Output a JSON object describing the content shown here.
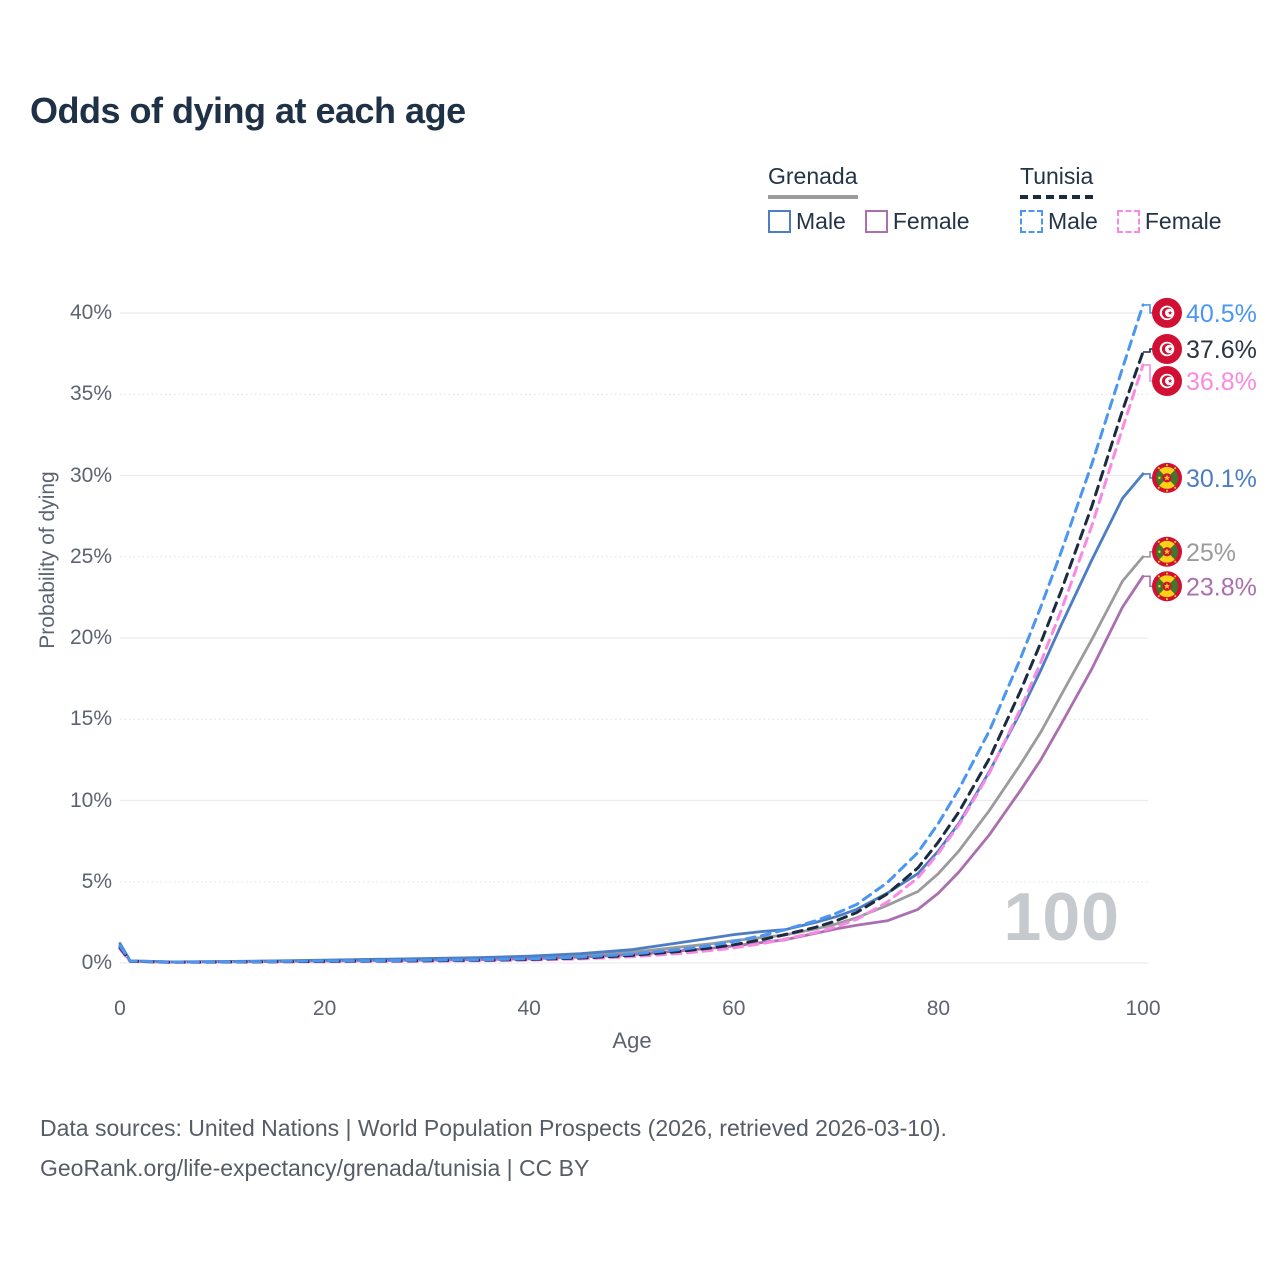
{
  "title": "Odds of dying at each age",
  "legend": {
    "groups": [
      {
        "name": "Grenada",
        "line_style": "solid",
        "color": "#9b9b9d",
        "items": [
          {
            "label": "Male",
            "color": "#4d7ec3"
          },
          {
            "label": "Female",
            "color": "#ab6fb0"
          }
        ]
      },
      {
        "name": "Tunisia",
        "line_style": "dashed",
        "color": "#1c2b3f",
        "items": [
          {
            "label": "Male",
            "color": "#4b96f0"
          },
          {
            "label": "Female",
            "color": "#f98ae3"
          }
        ]
      }
    ]
  },
  "chart_data": {
    "type": "line",
    "title": "Odds of dying at each age",
    "xlabel": "Age",
    "ylabel": "Probability of dying",
    "xlim": [
      0,
      100
    ],
    "ylim": [
      0,
      40
    ],
    "y_unit": "%",
    "grid": "horizontal",
    "legend_position": "top-right",
    "watermark": "100",
    "x_ticks": [
      0,
      20,
      40,
      60,
      80,
      100
    ],
    "y_tick_labels": [
      "0%",
      "5%",
      "10%",
      "15%",
      "20%",
      "25%",
      "30%",
      "35%",
      "40%"
    ],
    "x": [
      0,
      1,
      5,
      10,
      15,
      20,
      25,
      30,
      35,
      40,
      45,
      50,
      55,
      58,
      60,
      63,
      65,
      68,
      70,
      72,
      75,
      78,
      80,
      82,
      85,
      88,
      90,
      92,
      95,
      98,
      100
    ],
    "series": [
      {
        "id": "grenada_both",
        "name": "Grenada Both sexes",
        "country": "Grenada",
        "sex": "Both",
        "flag": "grenada-flag-icon",
        "color": "#9b9b9d",
        "dash": false,
        "end_label": "25%",
        "end_value": 25.0,
        "values": [
          1.1,
          0.12,
          0.06,
          0.08,
          0.11,
          0.15,
          0.19,
          0.23,
          0.27,
          0.34,
          0.46,
          0.66,
          1.0,
          1.2,
          1.38,
          1.58,
          1.72,
          2.1,
          2.4,
          2.78,
          3.55,
          4.4,
          5.5,
          6.9,
          9.4,
          12.2,
          14.2,
          16.5,
          19.9,
          23.5,
          25.0
        ]
      },
      {
        "id": "grenada_female",
        "name": "Grenada Female",
        "country": "Grenada",
        "sex": "Female",
        "flag": "grenada-flag-icon",
        "color": "#ab6fb0",
        "dash": false,
        "end_label": "23.8%",
        "end_value": 23.8,
        "values": [
          1.0,
          0.11,
          0.05,
          0.07,
          0.09,
          0.12,
          0.15,
          0.18,
          0.21,
          0.26,
          0.36,
          0.51,
          0.76,
          0.92,
          1.06,
          1.28,
          1.43,
          1.83,
          2.1,
          2.32,
          2.6,
          3.3,
          4.3,
          5.6,
          7.9,
          10.6,
          12.5,
          14.7,
          18.1,
          21.9,
          23.8
        ]
      },
      {
        "id": "grenada_male",
        "name": "Grenada Male",
        "country": "Grenada",
        "sex": "Male",
        "flag": "grenada-flag-icon",
        "color": "#4d7ec3",
        "dash": false,
        "end_label": "30.1%",
        "end_value": 30.1,
        "values": [
          1.2,
          0.13,
          0.07,
          0.09,
          0.13,
          0.18,
          0.23,
          0.28,
          0.33,
          0.42,
          0.57,
          0.82,
          1.28,
          1.55,
          1.75,
          1.95,
          2.05,
          2.5,
          2.85,
          3.3,
          4.3,
          5.5,
          6.9,
          8.6,
          11.8,
          15.4,
          18.0,
          20.8,
          24.8,
          28.6,
          30.1
        ]
      },
      {
        "id": "tunisia_female",
        "name": "Tunisia Female",
        "country": "Tunisia",
        "sex": "Female",
        "flag": "tunisia-flag-icon",
        "color": "#f98ae3",
        "dash": true,
        "end_label": "36.8%",
        "end_value": 36.8,
        "values": [
          0.85,
          0.1,
          0.04,
          0.05,
          0.06,
          0.08,
          0.1,
          0.11,
          0.14,
          0.18,
          0.25,
          0.38,
          0.6,
          0.78,
          0.93,
          1.22,
          1.47,
          1.88,
          2.23,
          2.68,
          3.75,
          5.25,
          6.75,
          8.5,
          11.7,
          15.6,
          18.5,
          21.7,
          26.9,
          32.9,
          36.8
        ]
      },
      {
        "id": "tunisia_both",
        "name": "Tunisia Both sexes",
        "country": "Tunisia",
        "sex": "Both",
        "flag": "tunisia-flag-icon",
        "color": "#1c2b3f",
        "dash": true,
        "end_label": "37.6%",
        "end_value": 37.6,
        "values": [
          0.95,
          0.11,
          0.05,
          0.06,
          0.08,
          0.1,
          0.12,
          0.14,
          0.17,
          0.22,
          0.31,
          0.47,
          0.73,
          0.94,
          1.12,
          1.47,
          1.75,
          2.2,
          2.6,
          3.1,
          4.25,
          5.85,
          7.45,
          9.3,
          12.6,
          16.7,
          19.7,
          22.9,
          28.1,
          34.0,
          37.6
        ]
      },
      {
        "id": "tunisia_male",
        "name": "Tunisia Male",
        "country": "Tunisia",
        "sex": "Male",
        "flag": "tunisia-flag-icon",
        "color": "#4b96f0",
        "dash": true,
        "end_label": "40.5%",
        "end_value": 40.5,
        "values": [
          1.05,
          0.12,
          0.06,
          0.07,
          0.09,
          0.12,
          0.14,
          0.17,
          0.2,
          0.26,
          0.36,
          0.55,
          0.85,
          1.1,
          1.32,
          1.72,
          2.05,
          2.6,
          3.05,
          3.6,
          4.95,
          6.8,
          8.6,
          10.7,
          14.3,
          18.7,
          21.9,
          25.3,
          30.7,
          36.6,
          40.5
        ]
      }
    ]
  },
  "footer": {
    "line1": "Data sources: United Nations | World Population Prospects (2026, retrieved 2026-03-10).",
    "line2": "GeoRank.org/life-expectancy/grenada/tunisia | CC BY"
  },
  "colors": {
    "title_text": "#1e3147",
    "axis_text": "#5d6370",
    "grid_major": "#ececf0",
    "grid_minor": "#dfe2e7",
    "watermark": "#c6cacf",
    "flag_red": "#d21034",
    "flag_yellow": "#fcd116",
    "flag_green": "#41762d"
  }
}
